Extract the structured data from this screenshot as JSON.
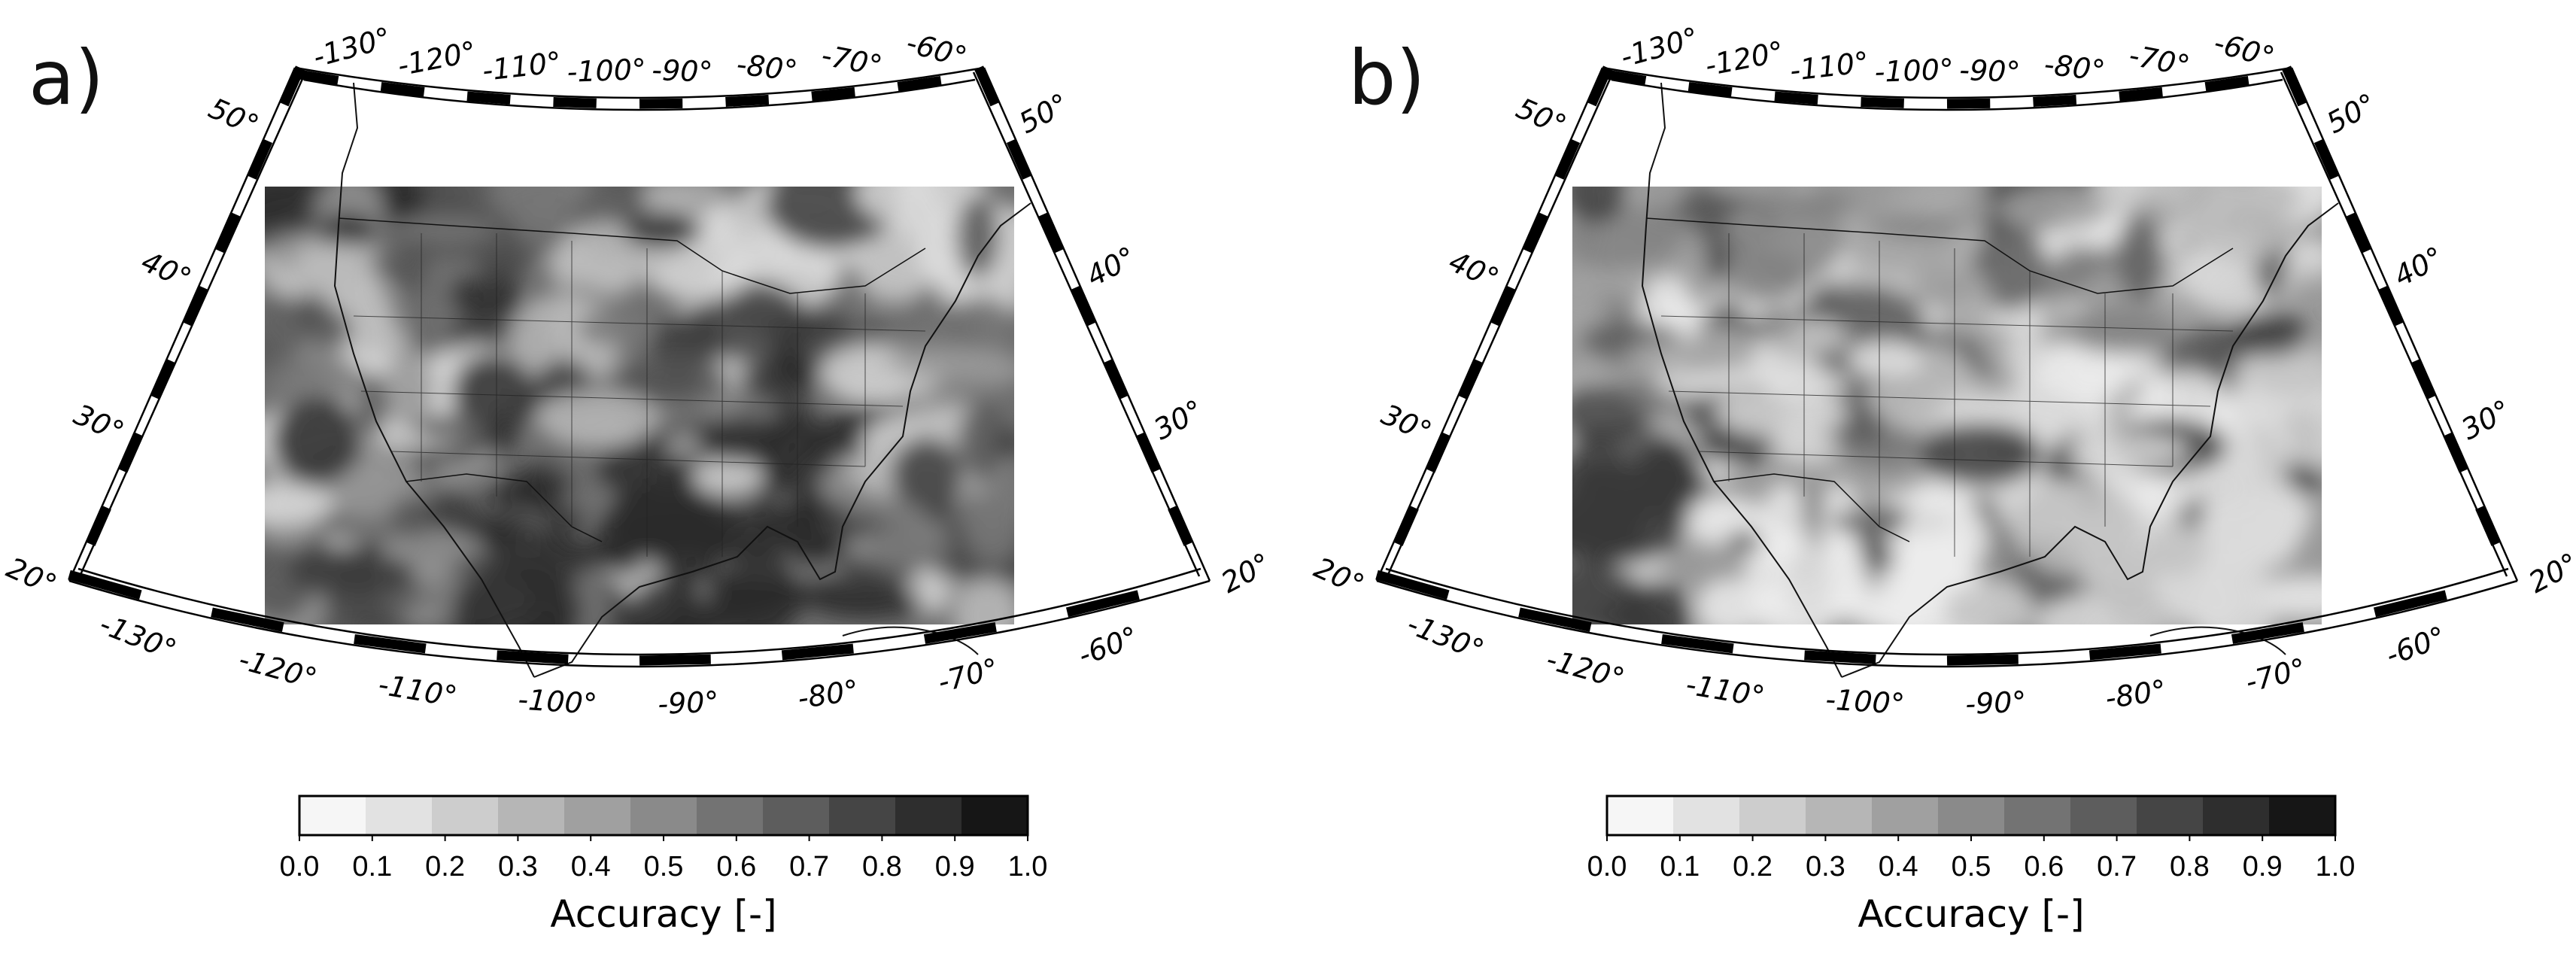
{
  "panels": [
    {
      "label": "a)",
      "top_lon_labels": [
        "-130°",
        "-120°",
        "-110°",
        "-100°",
        "-90°",
        "-80°",
        "-70°",
        "-60°"
      ],
      "bottom_lon_labels": [
        "-130°",
        "-120°",
        "-110°",
        "-100°",
        "-90°",
        "-80°",
        "-70°",
        "-60°"
      ],
      "left_lat_labels": [
        "20°",
        "30°",
        "40°",
        "50°"
      ],
      "right_lat_labels": [
        "20°",
        "30°",
        "40°",
        "50°"
      ],
      "colorbar": {
        "ticks": [
          "0.0",
          "0.1",
          "0.2",
          "0.3",
          "0.4",
          "0.5",
          "0.6",
          "0.7",
          "0.8",
          "0.9",
          "1.0"
        ],
        "title": "Accuracy [-]"
      },
      "field_tone": "dark"
    },
    {
      "label": "b)",
      "top_lon_labels": [
        "-130°",
        "-120°",
        "-110°",
        "-100°",
        "-90°",
        "-80°",
        "-70°",
        "-60°"
      ],
      "bottom_lon_labels": [
        "-130°",
        "-120°",
        "-110°",
        "-100°",
        "-90°",
        "-80°",
        "-70°",
        "-60°"
      ],
      "left_lat_labels": [
        "20°",
        "30°",
        "40°",
        "50°"
      ],
      "right_lat_labels": [
        "20°",
        "30°",
        "40°",
        "50°"
      ],
      "colorbar": {
        "ticks": [
          "0.0",
          "0.1",
          "0.2",
          "0.3",
          "0.4",
          "0.5",
          "0.6",
          "0.7",
          "0.8",
          "0.9",
          "1.0"
        ],
        "title": "Accuracy [-]"
      },
      "field_tone": "light"
    }
  ],
  "colorbar_colors": [
    "#f6f6f6",
    "#e2e2e2",
    "#cdcdcd",
    "#b6b6b6",
    "#a0a0a0",
    "#8a8a8a",
    "#737373",
    "#5d5d5d",
    "#454545",
    "#2e2e2e",
    "#161616"
  ]
}
